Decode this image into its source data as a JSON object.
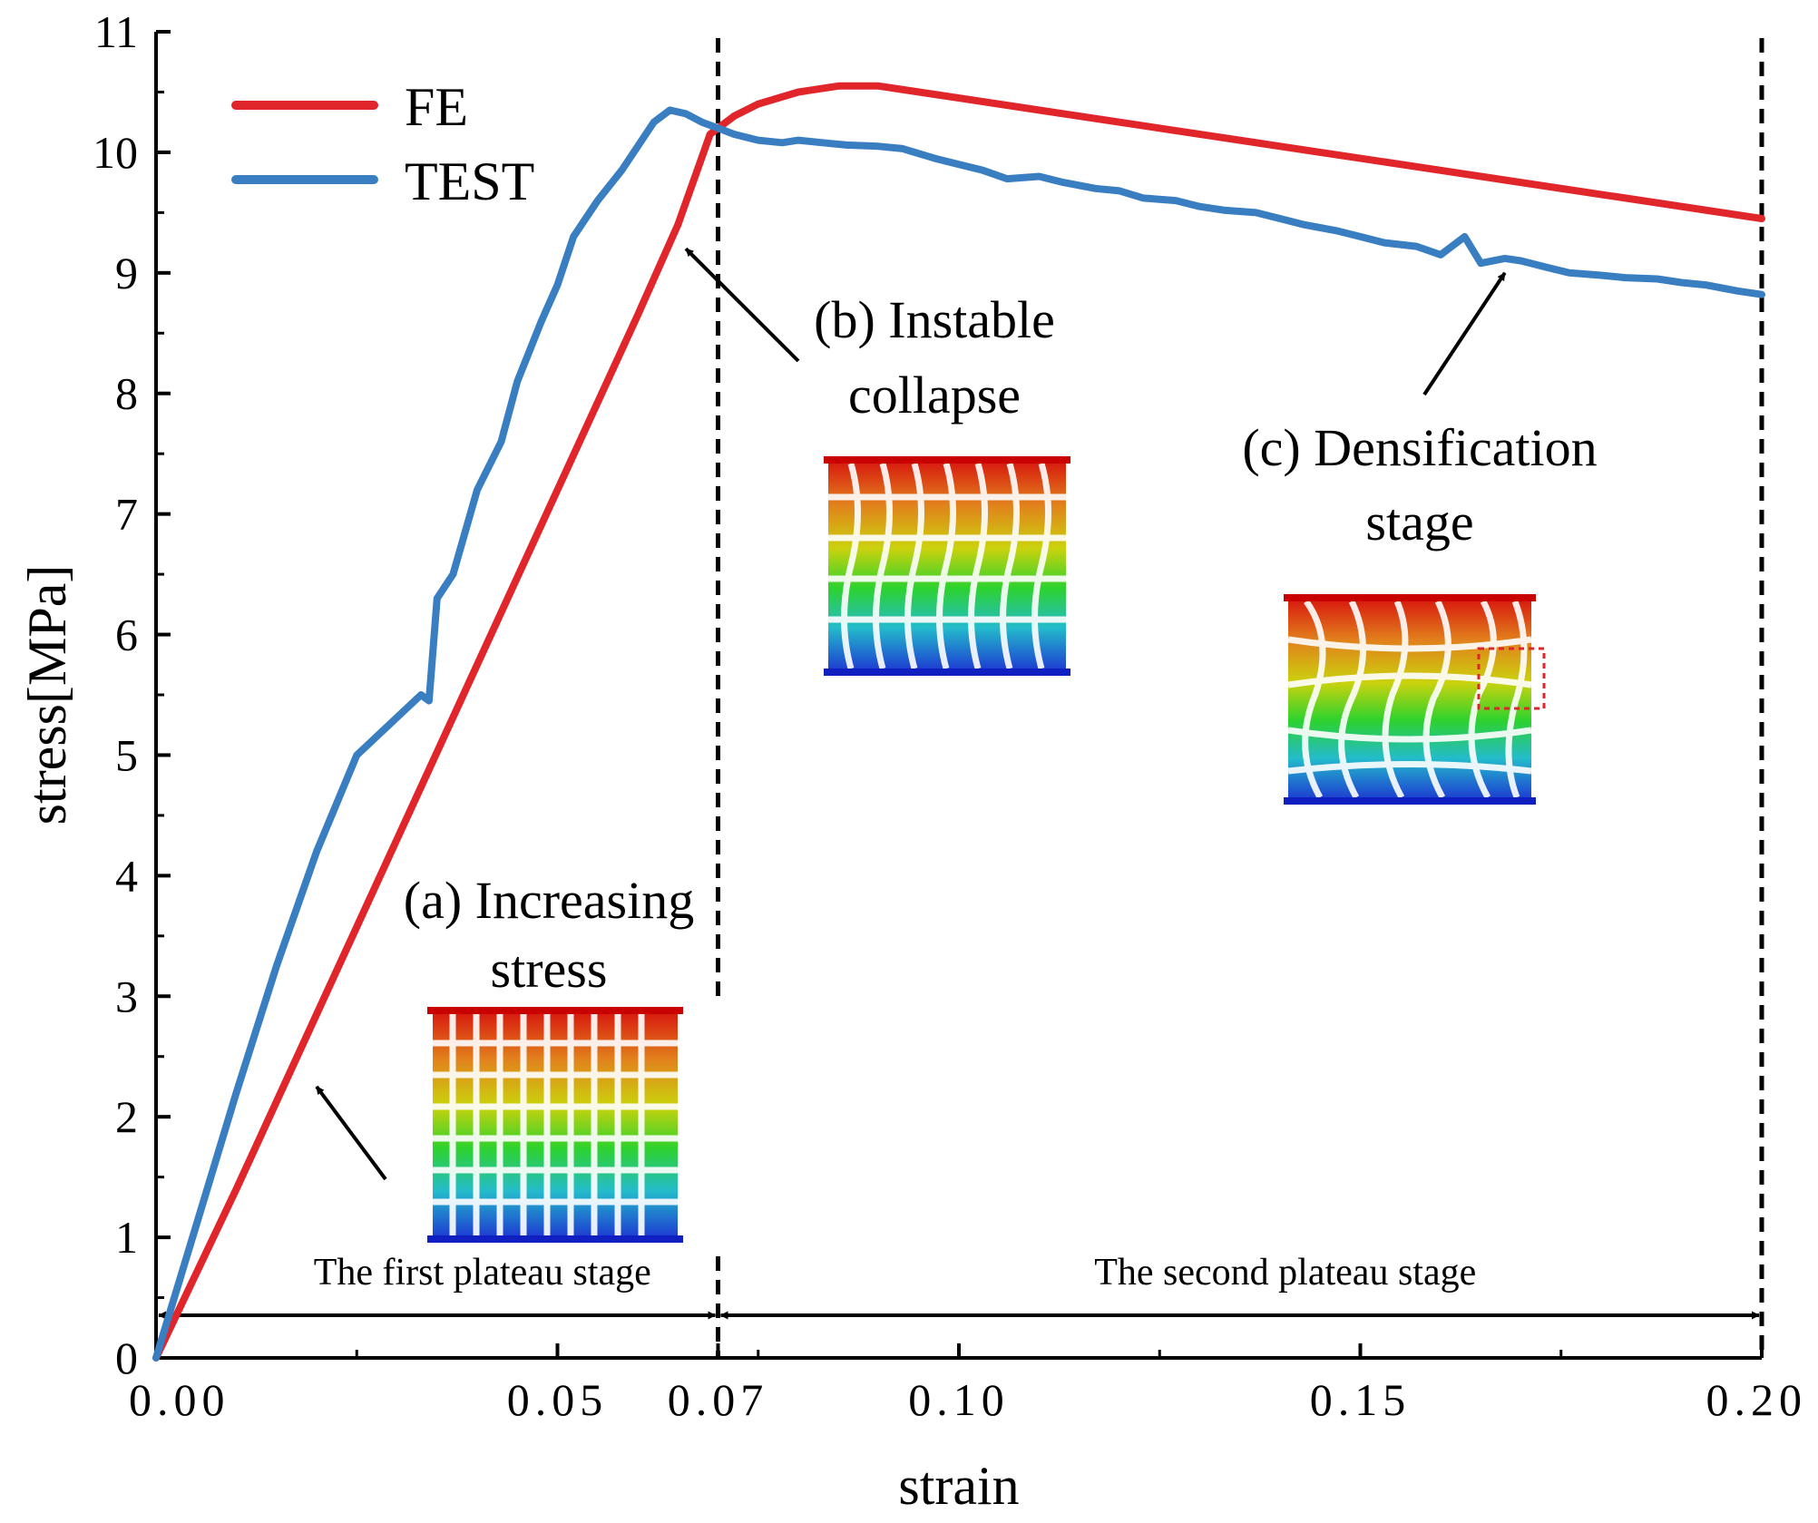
{
  "chart_data": {
    "type": "line",
    "title": "",
    "xlabel": "strain",
    "ylabel": "stress[MPa]",
    "xlim": [
      0,
      0.2
    ],
    "ylim": [
      0,
      11
    ],
    "x_tick_labels": [
      {
        "value": 0,
        "label": "0.00"
      },
      {
        "value": 0.05,
        "label": "0.05"
      },
      {
        "value": 0.07,
        "label": "0.07"
      },
      {
        "value": 0.1,
        "label": "0.10"
      },
      {
        "value": 0.15,
        "label": "0.15"
      },
      {
        "value": 0.2,
        "label": "0.20"
      }
    ],
    "y_tick_labels": [
      {
        "value": 0,
        "label": "0"
      },
      {
        "value": 1,
        "label": "1"
      },
      {
        "value": 2,
        "label": "2"
      },
      {
        "value": 3,
        "label": "3"
      },
      {
        "value": 4,
        "label": "4"
      },
      {
        "value": 5,
        "label": "5"
      },
      {
        "value": 6,
        "label": "6"
      },
      {
        "value": 7,
        "label": "7"
      },
      {
        "value": 8,
        "label": "8"
      },
      {
        "value": 9,
        "label": "9"
      },
      {
        "value": 10,
        "label": "10"
      },
      {
        "value": 11,
        "label": "11"
      }
    ],
    "grid": false,
    "legend_position": "top-left",
    "series": [
      {
        "name": "FE",
        "color": "#e0252b",
        "x": [
          0,
          0.01,
          0.02,
          0.03,
          0.04,
          0.05,
          0.06,
          0.065,
          0.069,
          0.072,
          0.075,
          0.08,
          0.085,
          0.09,
          0.1,
          0.12,
          0.14,
          0.16,
          0.18,
          0.2
        ],
        "y": [
          0,
          1.4,
          2.85,
          4.3,
          5.75,
          7.2,
          8.65,
          9.4,
          10.15,
          10.3,
          10.4,
          10.5,
          10.55,
          10.55,
          10.45,
          10.25,
          10.05,
          9.85,
          9.65,
          9.45
        ]
      },
      {
        "name": "TEST",
        "color": "#3a7ec2",
        "x": [
          0,
          0.005,
          0.01,
          0.015,
          0.02,
          0.025,
          0.033,
          0.034,
          0.035,
          0.037,
          0.04,
          0.043,
          0.045,
          0.048,
          0.05,
          0.052,
          0.055,
          0.058,
          0.06,
          0.062,
          0.064,
          0.066,
          0.068,
          0.07,
          0.072,
          0.075,
          0.078,
          0.08,
          0.083,
          0.086,
          0.09,
          0.093,
          0.097,
          0.1,
          0.103,
          0.106,
          0.11,
          0.113,
          0.117,
          0.12,
          0.123,
          0.127,
          0.13,
          0.133,
          0.137,
          0.14,
          0.143,
          0.147,
          0.15,
          0.153,
          0.157,
          0.16,
          0.163,
          0.165,
          0.168,
          0.17,
          0.173,
          0.176,
          0.18,
          0.183,
          0.187,
          0.19,
          0.193,
          0.197,
          0.2
        ],
        "y": [
          0,
          1.1,
          2.2,
          3.25,
          4.2,
          5.0,
          5.5,
          5.45,
          6.3,
          6.5,
          7.2,
          7.6,
          8.1,
          8.6,
          8.9,
          9.3,
          9.6,
          9.85,
          10.05,
          10.25,
          10.35,
          10.32,
          10.25,
          10.2,
          10.15,
          10.1,
          10.08,
          10.1,
          10.08,
          10.06,
          10.05,
          10.03,
          9.95,
          9.9,
          9.85,
          9.78,
          9.8,
          9.75,
          9.7,
          9.68,
          9.62,
          9.6,
          9.55,
          9.52,
          9.5,
          9.45,
          9.4,
          9.35,
          9.3,
          9.25,
          9.22,
          9.15,
          9.3,
          9.08,
          9.12,
          9.1,
          9.05,
          9.0,
          8.98,
          8.96,
          8.95,
          8.92,
          8.9,
          8.85,
          8.82
        ]
      }
    ],
    "vertical_markers": [
      0.07,
      0.2
    ],
    "stage_ranges": [
      {
        "label": "The first plateau stage",
        "from": 0,
        "to": 0.07
      },
      {
        "label": "The second plateau stage",
        "from": 0.07,
        "to": 0.2
      }
    ],
    "annotations": [
      {
        "lines": [
          "(a) Increasing",
          "stress"
        ],
        "arrow_target": [
          0.02,
          2.25
        ]
      },
      {
        "lines": [
          "(b) Instable",
          "collapse"
        ],
        "arrow_target": [
          0.066,
          9.2
        ]
      },
      {
        "lines": [
          "(c) Densification",
          "stage"
        ],
        "arrow_target": [
          0.168,
          9.0
        ]
      }
    ]
  }
}
